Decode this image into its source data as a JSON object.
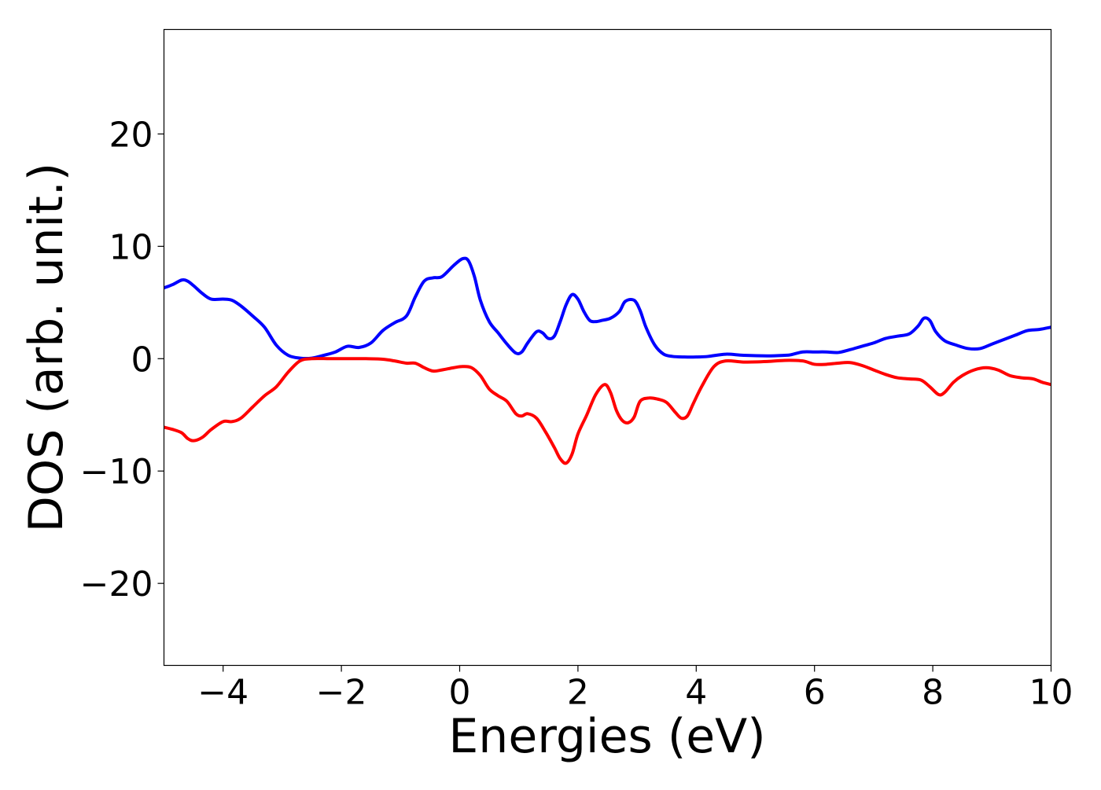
{
  "chart_data": {
    "type": "line",
    "title": "",
    "xlabel": "Energies (eV)",
    "ylabel": "DOS (arb. unit.)",
    "xlim": [
      -5,
      10
    ],
    "ylim": [
      -27.3,
      29.3
    ],
    "grid": false,
    "legend": "none",
    "x_ticks": [
      -4,
      -2,
      0,
      2,
      4,
      6,
      8,
      10
    ],
    "x_tick_labels": [
      "−4",
      "−2",
      "0",
      "2",
      "4",
      "6",
      "8",
      "10"
    ],
    "y_ticks": [
      -20,
      -10,
      0,
      10,
      20
    ],
    "y_tick_labels": [
      "−20",
      "−10",
      "0",
      "10",
      "20"
    ],
    "series": [
      {
        "color": "#0000ff",
        "x": [
          -5.0,
          -4.85,
          -4.7,
          -4.6,
          -4.5,
          -4.35,
          -4.2,
          -4.0,
          -3.85,
          -3.7,
          -3.5,
          -3.3,
          -3.1,
          -2.9,
          -2.7,
          -2.5,
          -2.3,
          -2.1,
          -1.9,
          -1.7,
          -1.5,
          -1.3,
          -1.1,
          -0.9,
          -0.75,
          -0.6,
          -0.45,
          -0.3,
          -0.1,
          0.05,
          0.15,
          0.25,
          0.35,
          0.5,
          0.65,
          0.8,
          0.95,
          1.05,
          1.15,
          1.3,
          1.4,
          1.5,
          1.6,
          1.7,
          1.8,
          1.9,
          2.0,
          2.1,
          2.2,
          2.3,
          2.4,
          2.55,
          2.7,
          2.8,
          2.95,
          3.05,
          3.15,
          3.3,
          3.45,
          3.6,
          3.8,
          4.0,
          4.2,
          4.5,
          4.8,
          5.2,
          5.5,
          5.6,
          5.8,
          6.0,
          6.2,
          6.4,
          6.6,
          6.8,
          7.0,
          7.2,
          7.4,
          7.6,
          7.75,
          7.85,
          7.95,
          8.05,
          8.2,
          8.4,
          8.6,
          8.8,
          9.0,
          9.2,
          9.4,
          9.6,
          9.8,
          10.0
        ],
        "values": [
          6.3,
          6.6,
          7.0,
          6.9,
          6.5,
          5.8,
          5.3,
          5.3,
          5.2,
          4.7,
          3.8,
          2.8,
          1.2,
          0.3,
          0.05,
          0.05,
          0.3,
          0.6,
          1.1,
          1.0,
          1.4,
          2.5,
          3.2,
          3.8,
          5.5,
          6.9,
          7.2,
          7.3,
          8.3,
          8.9,
          8.7,
          7.3,
          5.2,
          3.3,
          2.3,
          1.3,
          0.5,
          0.6,
          1.4,
          2.4,
          2.3,
          1.8,
          2.0,
          3.3,
          4.8,
          5.7,
          5.3,
          4.2,
          3.4,
          3.3,
          3.4,
          3.6,
          4.2,
          5.1,
          5.2,
          4.3,
          2.8,
          1.2,
          0.4,
          0.2,
          0.15,
          0.15,
          0.2,
          0.4,
          0.3,
          0.25,
          0.3,
          0.35,
          0.6,
          0.6,
          0.6,
          0.55,
          0.8,
          1.1,
          1.4,
          1.8,
          2.0,
          2.2,
          2.9,
          3.6,
          3.4,
          2.4,
          1.6,
          1.2,
          0.9,
          0.9,
          1.3,
          1.7,
          2.1,
          2.5,
          2.6,
          2.8
        ]
      },
      {
        "color": "#ff0000",
        "x": [
          -5.0,
          -4.85,
          -4.7,
          -4.6,
          -4.5,
          -4.35,
          -4.2,
          -4.0,
          -3.85,
          -3.7,
          -3.5,
          -3.3,
          -3.1,
          -2.9,
          -2.7,
          -2.5,
          -2.2,
          -1.9,
          -1.6,
          -1.3,
          -1.1,
          -0.9,
          -0.75,
          -0.6,
          -0.45,
          -0.3,
          -0.1,
          0.05,
          0.2,
          0.35,
          0.5,
          0.65,
          0.8,
          0.95,
          1.05,
          1.15,
          1.3,
          1.45,
          1.6,
          1.7,
          1.8,
          1.9,
          2.0,
          2.15,
          2.3,
          2.45,
          2.55,
          2.65,
          2.75,
          2.85,
          2.95,
          3.05,
          3.2,
          3.35,
          3.5,
          3.65,
          3.75,
          3.85,
          3.95,
          4.1,
          4.3,
          4.5,
          4.8,
          5.2,
          5.5,
          5.8,
          6.0,
          6.2,
          6.4,
          6.6,
          6.8,
          7.0,
          7.2,
          7.4,
          7.6,
          7.8,
          7.95,
          8.1,
          8.2,
          8.35,
          8.5,
          8.7,
          8.9,
          9.1,
          9.3,
          9.5,
          9.7,
          9.85,
          10.0
        ],
        "values": [
          -6.1,
          -6.3,
          -6.6,
          -7.1,
          -7.3,
          -7.0,
          -6.3,
          -5.6,
          -5.6,
          -5.3,
          -4.3,
          -3.3,
          -2.5,
          -1.2,
          -0.2,
          0.0,
          0.0,
          0.0,
          0.0,
          -0.05,
          -0.2,
          -0.4,
          -0.4,
          -0.8,
          -1.1,
          -1.0,
          -0.8,
          -0.7,
          -0.8,
          -1.5,
          -2.7,
          -3.3,
          -3.8,
          -4.9,
          -5.1,
          -4.9,
          -5.3,
          -6.5,
          -7.9,
          -8.9,
          -9.3,
          -8.5,
          -6.7,
          -5.0,
          -3.2,
          -2.3,
          -3.0,
          -4.6,
          -5.5,
          -5.7,
          -5.2,
          -3.8,
          -3.5,
          -3.6,
          -3.9,
          -4.8,
          -5.3,
          -5.1,
          -4.0,
          -2.4,
          -0.7,
          -0.2,
          -0.3,
          -0.25,
          -0.15,
          -0.2,
          -0.5,
          -0.5,
          -0.4,
          -0.35,
          -0.6,
          -1.0,
          -1.4,
          -1.7,
          -1.8,
          -1.9,
          -2.5,
          -3.2,
          -3.0,
          -2.1,
          -1.5,
          -1.0,
          -0.8,
          -1.0,
          -1.5,
          -1.7,
          -1.8,
          -2.1,
          -2.3
        ]
      }
    ]
  }
}
